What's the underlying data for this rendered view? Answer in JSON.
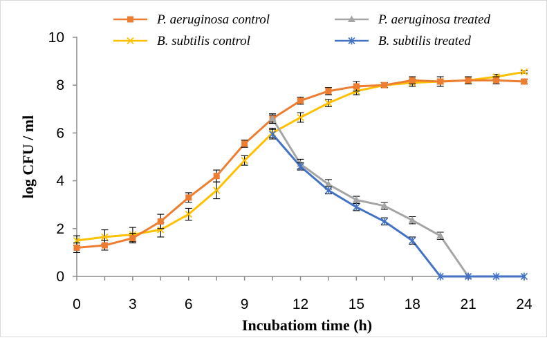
{
  "chart_data": {
    "type": "line",
    "title": "",
    "xlabel": "Incubatiom time (h)",
    "ylabel": "log CFU / ml",
    "xlim": [
      0,
      24
    ],
    "ylim": [
      0,
      10
    ],
    "xticks": [
      "0",
      "3",
      "6",
      "9",
      "12",
      "15",
      "18",
      "21",
      "24"
    ],
    "yticks": [
      "0",
      "2",
      "4",
      "6",
      "8",
      "10"
    ],
    "grid": false,
    "legend_position": "top",
    "series": [
      {
        "name": "P. aeruginosa control",
        "color": "#ED7D31",
        "marker": "square",
        "x": [
          0,
          1.5,
          3,
          4.5,
          6,
          7.5,
          9,
          10.5,
          12,
          13.5,
          15,
          16.5,
          18,
          19.5,
          21,
          22.5,
          24
        ],
        "y": [
          1.2,
          1.3,
          1.6,
          2.3,
          3.3,
          4.2,
          5.55,
          6.6,
          7.35,
          7.75,
          7.95,
          8.0,
          8.2,
          8.15,
          8.2,
          8.2,
          8.15
        ],
        "err": [
          0.2,
          0.2,
          0.2,
          0.3,
          0.2,
          0.25,
          0.15,
          0.15,
          0.15,
          0.15,
          0.2,
          0.1,
          0.15,
          0.2,
          0.15,
          0.15,
          0.1
        ]
      },
      {
        "name": "P. aeruginosa treated",
        "color": "#A5A5A5",
        "marker": "triangle",
        "x": [
          10.5,
          12,
          13.5,
          15,
          16.5,
          18,
          19.5,
          21
        ],
        "y": [
          6.6,
          4.7,
          3.85,
          3.2,
          2.95,
          2.35,
          1.7,
          0
        ],
        "err": [
          0.2,
          0.2,
          0.2,
          0.15,
          0.15,
          0.15,
          0.15,
          0
        ]
      },
      {
        "name": "B. subtilis control",
        "color": "#FFC000",
        "marker": "x",
        "x": [
          0,
          1.5,
          3,
          4.5,
          6,
          7.5,
          9,
          10.5,
          12,
          13.5,
          15,
          16.5,
          18,
          19.5,
          21,
          22.5,
          24
        ],
        "y": [
          1.5,
          1.65,
          1.75,
          1.95,
          2.6,
          3.6,
          4.85,
          6.0,
          6.65,
          7.25,
          7.75,
          8.0,
          8.1,
          8.15,
          8.2,
          8.35,
          8.55
        ],
        "err": [
          0.2,
          0.3,
          0.3,
          0.3,
          0.25,
          0.35,
          0.2,
          0.2,
          0.2,
          0.15,
          0.15,
          0.1,
          0.15,
          0.1,
          0.15,
          0.1,
          0.05
        ]
      },
      {
        "name": "B. subtilis treated",
        "color": "#4472C4",
        "marker": "asterisk",
        "x": [
          10.5,
          12,
          13.5,
          15,
          16.5,
          18,
          19.5,
          21,
          22.5,
          24
        ],
        "y": [
          5.95,
          4.6,
          3.6,
          2.9,
          2.3,
          1.5,
          0,
          0,
          0,
          0
        ],
        "err": [
          0.2,
          0.15,
          0.15,
          0.15,
          0.15,
          0.15,
          0,
          0,
          0,
          0
        ]
      }
    ]
  }
}
